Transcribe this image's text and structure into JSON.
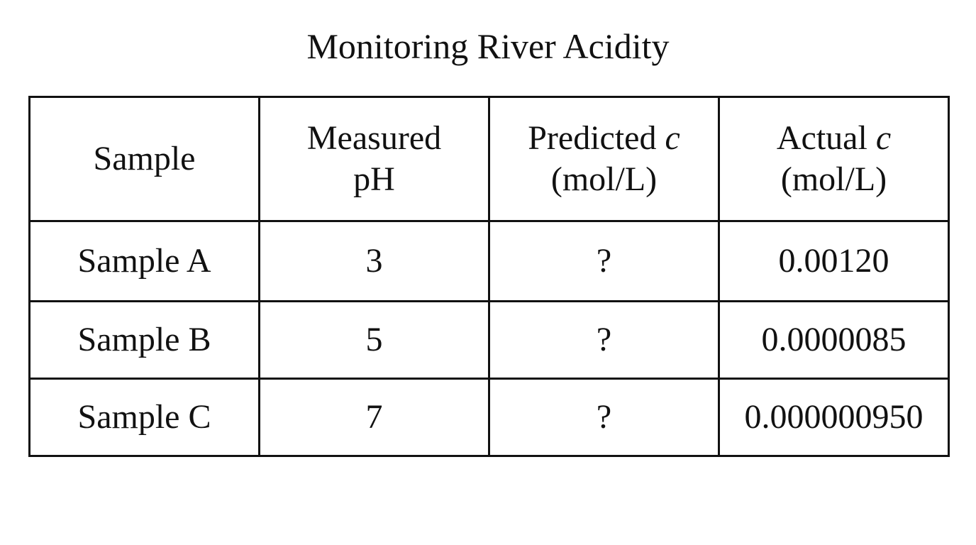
{
  "title": "Monitoring River Acidity",
  "table": {
    "headers": [
      {
        "lines": [
          "Sample"
        ]
      },
      {
        "lines": [
          "Measured",
          "pH"
        ]
      },
      {
        "text": "Predicted",
        "var": "c",
        "unit": "(mol/L)"
      },
      {
        "text": "Actual",
        "var": "c",
        "unit": "(mol/L)"
      }
    ],
    "rows": [
      {
        "sample": "Sample A",
        "ph": "3",
        "predicted": "?",
        "actual": "0.00120"
      },
      {
        "sample": "Sample B",
        "ph": "5",
        "predicted": "?",
        "actual": "0.0000085"
      },
      {
        "sample": "Sample C",
        "ph": "7",
        "predicted": "?",
        "actual": "0.000000950"
      }
    ]
  }
}
